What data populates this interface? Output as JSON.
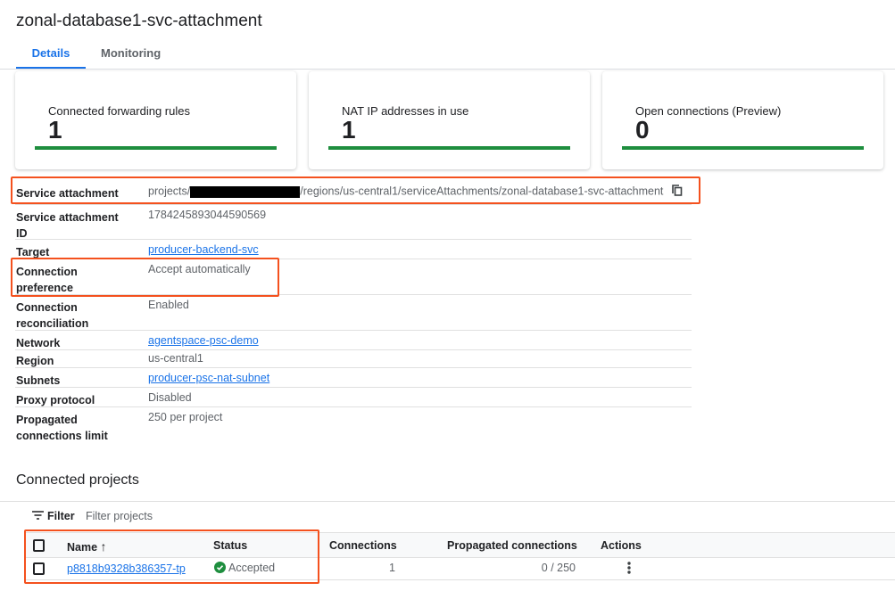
{
  "title": "zonal-database1-svc-attachment",
  "tabs": [
    {
      "label": "Details"
    },
    {
      "label": "Monitoring"
    }
  ],
  "cards": [
    {
      "label": "Connected forwarding rules",
      "value": "1"
    },
    {
      "label": "NAT IP addresses in use",
      "value": "1"
    },
    {
      "label": "Open connections (Preview)",
      "value": "0"
    }
  ],
  "details": {
    "service_attachment": {
      "label": "Service attachment",
      "prefix": "projects/",
      "suffix": "/regions/us-central1/serviceAttachments/zonal-database1-svc-attachment"
    },
    "id": {
      "label": "Service attachment ID",
      "value": "1784245893044590569"
    },
    "target": {
      "label": "Target",
      "value": "producer-backend-svc"
    },
    "pref": {
      "label": "Connection preference",
      "value": "Accept automatically"
    },
    "recon": {
      "label": "Connection reconciliation",
      "value": "Enabled"
    },
    "network": {
      "label": "Network",
      "value": "agentspace-psc-demo"
    },
    "region": {
      "label": "Region",
      "value": "us-central1"
    },
    "subnets": {
      "label": "Subnets",
      "value": "producer-psc-nat-subnet"
    },
    "proxy": {
      "label": "Proxy protocol",
      "value": "Disabled"
    },
    "limit": {
      "label": "Propagated connections limit",
      "value": "250 per project"
    }
  },
  "connected": {
    "heading": "Connected projects",
    "filter_label": "Filter",
    "filter_placeholder": "Filter projects",
    "columns": [
      "Name",
      "Status",
      "Connections",
      "Propagated connections",
      "Actions"
    ],
    "rows": [
      {
        "name": "p8818b9328b386357-tp",
        "status": "Accepted",
        "connections": "1",
        "propagated": "0 / 250"
      }
    ]
  }
}
